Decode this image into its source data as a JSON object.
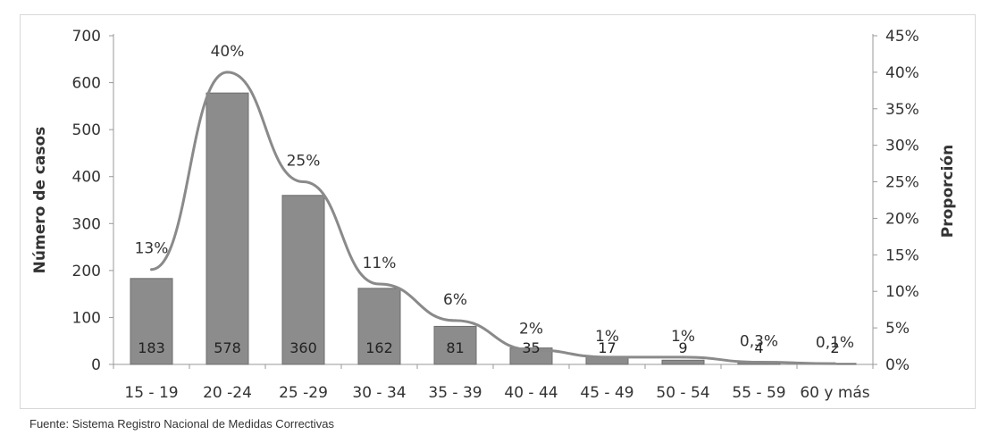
{
  "chart_data": {
    "type": "bar",
    "categories": [
      "15 - 19",
      "20 -24",
      "25 -29",
      "30 - 34",
      "35 - 39",
      "40 - 44",
      "45 - 49",
      "50 - 54",
      "55 - 59",
      "60 y más"
    ],
    "series": [
      {
        "axis": "left",
        "type": "bar",
        "values": [
          183,
          578,
          360,
          162,
          81,
          35,
          17,
          9,
          4,
          2
        ]
      },
      {
        "axis": "right",
        "type": "line",
        "values": [
          13,
          40,
          25,
          11,
          6,
          2,
          1,
          1,
          0.3,
          0.1
        ]
      }
    ],
    "bar_labels": [
      "183",
      "578",
      "360",
      "162",
      "81",
      "35",
      "17",
      "9",
      "4",
      "2"
    ],
    "percent_labels": [
      "13%",
      "40%",
      "25%",
      "11%",
      "6%",
      "2%",
      "1%",
      "1%",
      "0,3%",
      "0,1%"
    ],
    "ylabel": "Número de casos",
    "ylabel_right": "Proporción",
    "ylim": [
      0,
      700
    ],
    "yticks": [
      "0",
      "100",
      "200",
      "300",
      "400",
      "500",
      "600",
      "700"
    ],
    "ylim_right": [
      0,
      45
    ],
    "yticks_right": [
      "0%",
      "5%",
      "10%",
      "15%",
      "20%",
      "25%",
      "30%",
      "35%",
      "40%",
      "45%"
    ],
    "grid": false,
    "colors": {
      "bar": "#8c8c8c",
      "bar_edge": "#6e6e6e",
      "line": "#8a8a8a",
      "axis": "#999999"
    }
  },
  "source_note": "Fuente: Sistema Registro Nacional de Medidas Correctivas"
}
